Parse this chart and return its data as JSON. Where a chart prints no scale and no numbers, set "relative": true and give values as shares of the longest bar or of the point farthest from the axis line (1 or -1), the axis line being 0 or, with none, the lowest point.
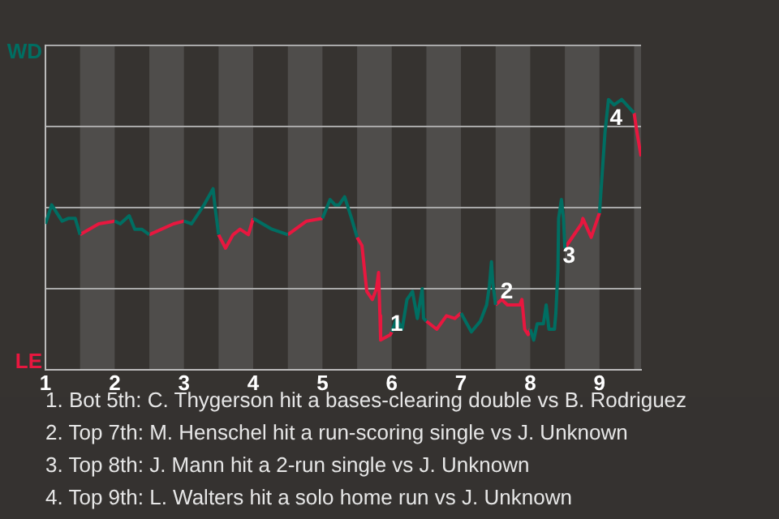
{
  "chart_data": {
    "type": "line",
    "relative": true,
    "xlim": [
      1,
      9.6
    ],
    "xticks": [
      1,
      2,
      3,
      4,
      5,
      6,
      7,
      8,
      9
    ],
    "grid": "y",
    "bands": [
      {
        "axis": "x",
        "from": 1.5,
        "to": 2,
        "color": "#4f4d4b"
      },
      {
        "axis": "x",
        "from": 2.5,
        "to": 3,
        "color": "#4f4d4b"
      },
      {
        "axis": "x",
        "from": 3.5,
        "to": 4,
        "color": "#4f4d4b"
      },
      {
        "axis": "x",
        "from": 4.5,
        "to": 5,
        "color": "#4f4d4b"
      },
      {
        "axis": "x",
        "from": 5.5,
        "to": 6,
        "color": "#4f4d4b"
      },
      {
        "axis": "x",
        "from": 6.5,
        "to": 7,
        "color": "#4f4d4b"
      },
      {
        "axis": "x",
        "from": 7.5,
        "to": 8,
        "color": "#4f4d4b"
      },
      {
        "axis": "x",
        "from": 8.5,
        "to": 9,
        "color": "#4f4d4b"
      },
      {
        "axis": "x",
        "from": 9.5,
        "to": 9.6,
        "color": "#4f4d4b"
      }
    ],
    "series": [
      {
        "name": "WD",
        "color": "#006e62",
        "x": [
          1,
          1.09,
          1.24,
          1.33,
          1.43,
          1.5,
          1.75,
          2,
          2.08,
          2.21,
          2.29,
          2.39,
          2.5,
          2.75,
          3,
          3.11,
          3.29,
          3.42,
          3.45,
          3.5,
          3.75,
          4,
          4.27,
          4.5,
          4.75,
          5,
          5.11,
          5.18,
          5.24,
          5.32,
          5.42,
          5.5,
          5.75,
          6,
          6.07,
          6.15,
          6.22,
          6.3,
          6.37,
          6.44,
          6.46,
          6.5,
          6.75,
          7,
          7.15,
          7.28,
          7.37,
          7.41,
          7.44,
          7.46,
          7.5,
          7.75,
          8,
          8.05,
          8.1,
          8.19,
          8.23,
          8.27,
          8.35,
          8.37,
          8.4,
          8.41,
          8.45,
          8.48,
          8.5,
          8.75,
          9,
          9.08,
          9.13,
          9.21,
          9.32,
          9.5
        ],
        "values": [
          0.54,
          0.61,
          0.55,
          0.56,
          0.56,
          0.5,
          null,
          0.55,
          0.54,
          0.57,
          0.52,
          0.52,
          0.5,
          null,
          0.55,
          0.54,
          0.61,
          0.67,
          0.6,
          0.5,
          null,
          0.56,
          0.52,
          0.5,
          null,
          0.56,
          0.63,
          0.61,
          0.61,
          0.64,
          0.56,
          0.49,
          null,
          0.14,
          0.19,
          0.15,
          0.26,
          0.29,
          0.19,
          0.3,
          0.19,
          0.18,
          null,
          0.21,
          0.14,
          0.18,
          0.24,
          0.31,
          0.4,
          0.32,
          0.24,
          null,
          0.15,
          0.11,
          0.17,
          0.17,
          0.24,
          0.15,
          0.15,
          0.21,
          0.37,
          0.56,
          0.63,
          0.56,
          0.45,
          null,
          0.58,
          0.88,
          1,
          0.98,
          1,
          0.95
        ]
      },
      {
        "name": "LE",
        "color": "#e8173f",
        "x": [
          1.5,
          1.77,
          2,
          2.25,
          2.5,
          2.85,
          3,
          3.25,
          3.5,
          3.6,
          3.71,
          3.81,
          3.93,
          4,
          4.25,
          4.5,
          4.77,
          5,
          5.25,
          5.5,
          5.57,
          5.64,
          5.72,
          5.78,
          5.81,
          5.83,
          5.84,
          5.91,
          5.98,
          6,
          6.25,
          6.5,
          6.65,
          6.79,
          6.91,
          7,
          7.25,
          7.5,
          7.59,
          7.67,
          7.85,
          7.88,
          7.92,
          7.97,
          8,
          8.25,
          8.5,
          8.74,
          8.76,
          8.88,
          9,
          9.25,
          9.5,
          9.54,
          9.6
        ],
        "values": [
          0.5,
          0.54,
          0.55,
          null,
          0.5,
          0.54,
          0.55,
          null,
          0.5,
          0.45,
          0.5,
          0.52,
          0.5,
          0.56,
          null,
          0.5,
          0.55,
          0.56,
          null,
          0.49,
          0.46,
          0.29,
          0.26,
          0.3,
          0.36,
          0.2,
          0.11,
          0.12,
          0.13,
          0.14,
          null,
          0.18,
          0.15,
          0.2,
          0.19,
          0.21,
          null,
          0.24,
          0.26,
          0.24,
          0.24,
          0.26,
          0.15,
          0.13,
          0.15,
          null,
          0.45,
          0.54,
          0.56,
          0.49,
          0.58,
          null,
          0.95,
          0.88,
          0.79
        ]
      }
    ],
    "annotations": [
      {
        "text": "1",
        "x": 5.91,
        "y": 0.12
      },
      {
        "text": "2",
        "x": 7.5,
        "y": 0.24
      },
      {
        "text": "3",
        "x": 8.4,
        "y": 0.37
      },
      {
        "text": "4",
        "x": 9.08,
        "y": 0.88
      },
      "1. Bot 5th: C. Thygerson hit a bases-clearing double vs B. Rodriguez",
      "2. Top 7th: M. Henschel hit a run-scoring single vs J. Unknown",
      "3. Top 8th: J. Mann hit a 2-run single vs J. Unknown",
      "4. Top 9th: L. Walters hit a solo home run vs J. Unknown"
    ]
  }
}
